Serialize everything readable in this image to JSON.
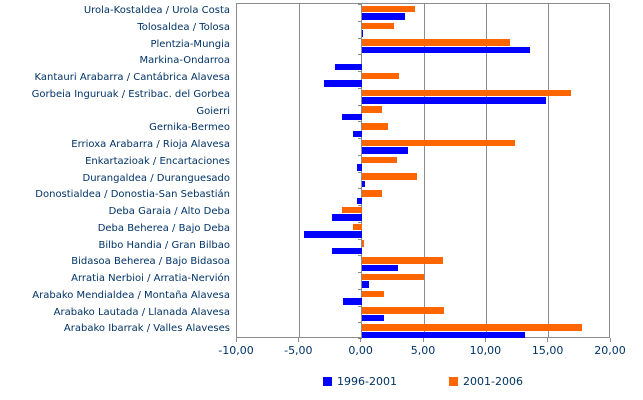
{
  "chart_data": {
    "type": "bar",
    "orientation": "horizontal",
    "title": "",
    "xlabel": "",
    "ylabel": "",
    "xlim": [
      -10,
      20
    ],
    "xticks": [
      -10,
      -5,
      0,
      5,
      10,
      15,
      20
    ],
    "xtick_labels": [
      "-10,00",
      "-5,00",
      "0,00",
      "5,00",
      "10,00",
      "15,00",
      "20,00"
    ],
    "grid": true,
    "legend_position": "bottom",
    "categories": [
      "Urola-Kostaldea / Urola Costa",
      "Tolosaldea / Tolosa",
      "Plentzia-Mungia",
      "Markina-Ondarroa",
      "Kantauri Arabarra / Cantábrica Alavesa",
      "Gorbeia Inguruak / Estribac. del Gorbea",
      "Goierri",
      "Gernika-Bermeo",
      "Errioxa Arabarra / Rioja Alavesa",
      "Enkartazioak / Encartaciones",
      "Durangaldea / Duranguesado",
      "Donostialdea / Donostia-San Sebastián",
      "Deba Garaia / Alto Deba",
      "Deba Beherea / Bajo Deba",
      "Bilbo Handia / Gran Bilbao",
      "Bidasoa Beherea / Bajo Bidasoa",
      "Arratia Nerbioi / Arratia-Nervión",
      "Arabako Mendialdea / Montaña Alavesa",
      "Arabako Lautada / Llanada Alavesa",
      "Arabako Ibarrak / Valles Alaveses"
    ],
    "series": [
      {
        "name": "1996-2001",
        "color": "#0000ff",
        "values": [
          3.5,
          0.1,
          13.5,
          -2.1,
          -3.0,
          14.8,
          -1.6,
          -0.7,
          3.7,
          -0.4,
          0.3,
          -0.4,
          -2.4,
          -4.6,
          -2.4,
          2.9,
          0.6,
          -1.5,
          1.8,
          13.1
        ]
      },
      {
        "name": "2001-2006",
        "color": "#ff6600",
        "values": [
          4.3,
          2.6,
          11.9,
          0.0,
          3.0,
          16.8,
          1.6,
          2.1,
          12.3,
          2.8,
          4.4,
          1.6,
          -1.6,
          -0.7,
          0.2,
          6.5,
          5.0,
          1.8,
          6.6,
          17.7
        ]
      }
    ]
  },
  "colors": {
    "grid": "#8c8c8c",
    "text": "#003366",
    "background": "#ffffff"
  }
}
